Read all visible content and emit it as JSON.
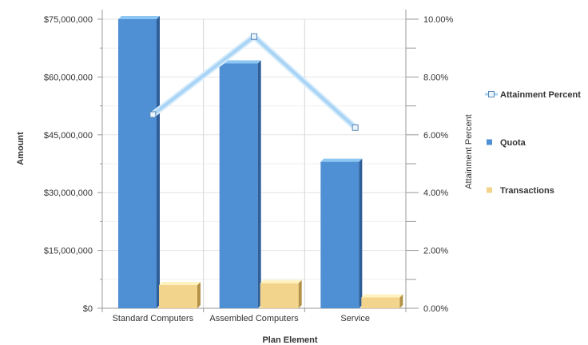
{
  "chart_data": {
    "type": "bar",
    "categories": [
      "Standard Computers",
      "Assembled Computers",
      "Service"
    ],
    "series": [
      {
        "name": "Quota",
        "axis": "left",
        "type": "bar",
        "color": "#4f8fd3",
        "values": [
          75000000,
          63500000,
          38000000
        ]
      },
      {
        "name": "Transactions",
        "axis": "left",
        "type": "bar",
        "color": "#f2d48c",
        "values": [
          6000000,
          6500000,
          2800000
        ]
      },
      {
        "name": "Attainment Percent",
        "axis": "right",
        "type": "line",
        "color": "#a9d4f5",
        "values": [
          6.7,
          9.4,
          6.25
        ]
      }
    ],
    "xlabel": "Plan Element",
    "ylabel": "Amount",
    "ylabel_right": "Attainment Percent",
    "ylim": [
      0,
      75000000
    ],
    "ylim_right": [
      0,
      10
    ],
    "yticks": [
      "$0",
      "$15,000,000",
      "$30,000,000",
      "$45,000,000",
      "$60,000,000",
      "$75,000,000"
    ],
    "yticks_right": [
      "0.00%",
      "2.00%",
      "4.00%",
      "6.00%",
      "8.00%",
      "10.00%"
    ],
    "legend": [
      "Attainment Percent",
      "Quota",
      "Transactions"
    ],
    "legend_position": "right",
    "grid": true
  }
}
